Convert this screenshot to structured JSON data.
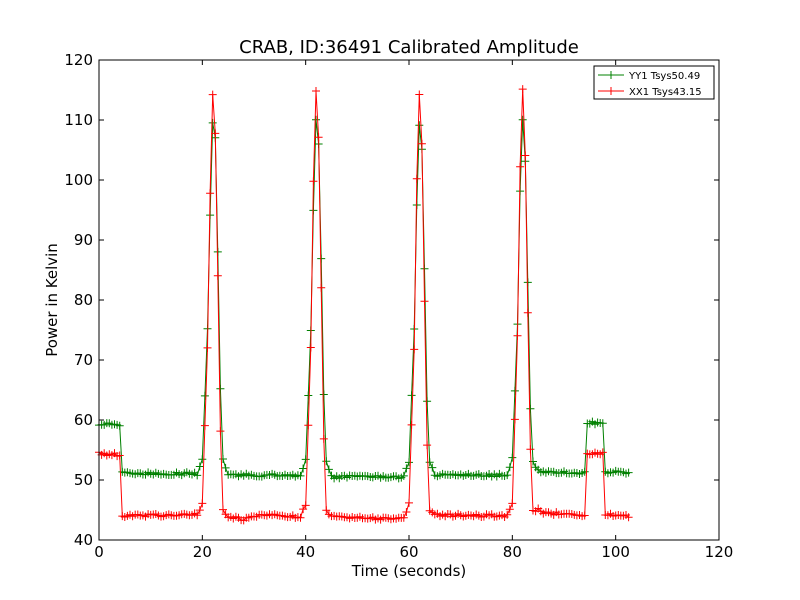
{
  "chart_data": {
    "type": "line",
    "title": "CRAB, ID:36491 Calibrated Amplitude",
    "xlabel": "Time (seconds)",
    "ylabel": "Power in Kelvin",
    "xlim": [
      0,
      120
    ],
    "ylim": [
      40,
      120
    ],
    "x_ticks": [
      0,
      20,
      40,
      60,
      80,
      100,
      120
    ],
    "y_ticks": [
      40,
      50,
      60,
      70,
      80,
      90,
      100,
      110,
      120
    ],
    "grid": false,
    "legend_position": "top-right",
    "marker": "+",
    "sample_interval": 0.5,
    "series": [
      {
        "name": "YY1 Tsys50.49",
        "color": "#008000",
        "points": [
          [
            0,
            59.4
          ],
          [
            4,
            59.2
          ],
          [
            4.5,
            51.2
          ],
          [
            19,
            51.0
          ],
          [
            20,
            53.5
          ],
          [
            21,
            75.0
          ],
          [
            21.5,
            94.0
          ],
          [
            22,
            109.5
          ],
          [
            22.5,
            107.0
          ],
          [
            23,
            88.0
          ],
          [
            23.5,
            65.0
          ],
          [
            24,
            53.5
          ],
          [
            25,
            50.8
          ],
          [
            39,
            50.8
          ],
          [
            40,
            53.5
          ],
          [
            41,
            75.0
          ],
          [
            41.5,
            95.0
          ],
          [
            42,
            110.0
          ],
          [
            42.5,
            106.0
          ],
          [
            43,
            87.0
          ],
          [
            43.5,
            64.0
          ],
          [
            44,
            53.0
          ],
          [
            45,
            50.5
          ],
          [
            59,
            50.5
          ],
          [
            60,
            53.0
          ],
          [
            61,
            75.0
          ],
          [
            61.5,
            96.0
          ],
          [
            62,
            109.0
          ],
          [
            62.5,
            105.0
          ],
          [
            63,
            85.0
          ],
          [
            63.5,
            63.0
          ],
          [
            64,
            53.0
          ],
          [
            65,
            50.8
          ],
          [
            79,
            50.8
          ],
          [
            80,
            53.5
          ],
          [
            81,
            76.0
          ],
          [
            81.5,
            98.0
          ],
          [
            82,
            110.0
          ],
          [
            82.5,
            103.0
          ],
          [
            83,
            83.0
          ],
          [
            83.5,
            62.0
          ],
          [
            84,
            53.0
          ],
          [
            85,
            51.5
          ],
          [
            94,
            51.2
          ],
          [
            94.5,
            59.5
          ],
          [
            97.5,
            59.5
          ],
          [
            98,
            51.4
          ],
          [
            102.5,
            51.2
          ]
        ]
      },
      {
        "name": "XX1 Tsys43.15",
        "color": "#ff0000",
        "points": [
          [
            0,
            54.4
          ],
          [
            4,
            54.2
          ],
          [
            4.5,
            44.0
          ],
          [
            19,
            44.2
          ],
          [
            20,
            46.0
          ],
          [
            21,
            72.0
          ],
          [
            21.5,
            98.0
          ],
          [
            22,
            114.0
          ],
          [
            22.5,
            108.0
          ],
          [
            23,
            84.0
          ],
          [
            23.5,
            58.0
          ],
          [
            24,
            45.0
          ],
          [
            25,
            43.8
          ],
          [
            28,
            43.5
          ],
          [
            32,
            44.2
          ],
          [
            39,
            43.8
          ],
          [
            40,
            46.0
          ],
          [
            41,
            72.0
          ],
          [
            41.5,
            100.0
          ],
          [
            42,
            115.0
          ],
          [
            42.5,
            107.0
          ],
          [
            43,
            82.0
          ],
          [
            43.5,
            57.0
          ],
          [
            44,
            45.0
          ],
          [
            45,
            43.8
          ],
          [
            59,
            43.5
          ],
          [
            60,
            46.0
          ],
          [
            61,
            72.0
          ],
          [
            61.5,
            100.0
          ],
          [
            62,
            114.0
          ],
          [
            62.5,
            106.0
          ],
          [
            63,
            80.0
          ],
          [
            63.5,
            56.0
          ],
          [
            64,
            45.0
          ],
          [
            65,
            44.2
          ],
          [
            79,
            44.0
          ],
          [
            80,
            46.0
          ],
          [
            81,
            74.0
          ],
          [
            81.5,
            102.0
          ],
          [
            82,
            115.0
          ],
          [
            82.5,
            104.0
          ],
          [
            83,
            78.0
          ],
          [
            83.5,
            55.0
          ],
          [
            84,
            45.0
          ],
          [
            85,
            45.0
          ],
          [
            86,
            44.5
          ],
          [
            94,
            44.2
          ],
          [
            94.5,
            54.5
          ],
          [
            97.5,
            54.5
          ],
          [
            98,
            44.2
          ],
          [
            102.5,
            44.0
          ]
        ]
      }
    ]
  }
}
